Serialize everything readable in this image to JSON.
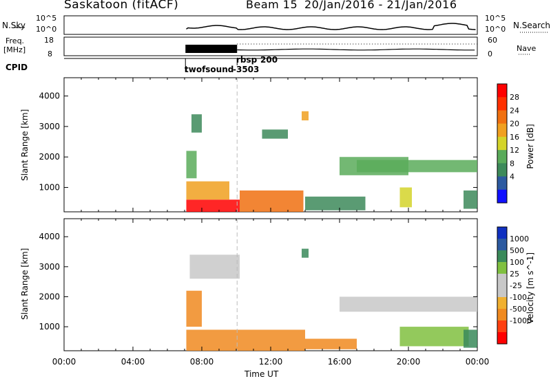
{
  "header": {
    "station": "Saskatoon (fitACF)",
    "beam": "Beam 15",
    "date_range": "20/Jan/2016 - 21/Jan/2016"
  },
  "top_panels": {
    "nsky_label": "N.Sky",
    "nsky_ticks": [
      "10^5",
      "10^0"
    ],
    "nsearch_label": "N.Search",
    "nsearch_ticks": [
      "10^5",
      "10^0"
    ],
    "freq_label": "Freq.",
    "freq_unit": "[MHz]",
    "freq_ticks": [
      "18",
      "8"
    ],
    "nave_label": "Nave",
    "nave_ticks": [
      "60",
      "0"
    ],
    "cpid_label": "CPID",
    "cpid_1": "twofsound",
    "cpid_1_value": "-3503",
    "cpid_2": "rbsp",
    "cpid_2_value": "200"
  },
  "colors": {
    "power": [
      "#1010ff",
      "#2c5aa0",
      "#3d8a5a",
      "#5aab5a",
      "#d4d42a",
      "#f0a020",
      "#f07010",
      "#ff3000",
      "#ff0000"
    ],
    "velocity": [
      "#ff0000",
      "#ff4010",
      "#f08a20",
      "#f0b030",
      "#c8c8c8",
      "#c8c8c8",
      "#80c040",
      "#3a8a5a",
      "#2c5aa0",
      "#1030c0"
    ]
  },
  "chart_data": [
    {
      "type": "heatmap",
      "title": "",
      "xlabel": "Time UT",
      "ylabel": "Slant Range [km]",
      "x_ticks": [
        "00:00",
        "04:00",
        "08:00",
        "12:00",
        "16:00",
        "20:00",
        "00:00"
      ],
      "xlim_hours": [
        0,
        24
      ],
      "ylim": [
        200,
        4600
      ],
      "y_ticks": [
        1000,
        2000,
        3000,
        4000
      ],
      "colorbar_label": "Power [dB]",
      "colorbar_ticks": [
        "28",
        "24",
        "20",
        "16",
        "12",
        "8",
        "4"
      ],
      "colorbar_range": [
        0,
        32
      ],
      "cells": [
        [
          7.1,
          200,
          10.2,
          600,
          30
        ],
        [
          7.1,
          600,
          9.6,
          1200,
          21
        ],
        [
          7.1,
          1300,
          7.7,
          2200,
          14
        ],
        [
          7.4,
          2800,
          8.0,
          3400,
          8
        ],
        [
          10.2,
          200,
          13.9,
          900,
          22
        ],
        [
          11.5,
          2600,
          13.0,
          2900,
          10
        ],
        [
          13.8,
          3200,
          14.2,
          3500,
          18
        ],
        [
          14.0,
          250,
          17.5,
          700,
          8
        ],
        [
          16.0,
          1400,
          20.0,
          2000,
          13
        ],
        [
          17.0,
          1500,
          24.0,
          1900,
          14
        ],
        [
          19.5,
          350,
          20.2,
          1000,
          15
        ],
        [
          23.2,
          300,
          24.0,
          900,
          10
        ]
      ]
    },
    {
      "type": "heatmap",
      "xlabel": "Time UT",
      "ylabel": "Slant Range [km]",
      "x_ticks": [
        "00:00",
        "04:00",
        "08:00",
        "12:00",
        "16:00",
        "20:00",
        "00:00"
      ],
      "xlim_hours": [
        0,
        24
      ],
      "ylim": [
        200,
        4600
      ],
      "y_ticks": [
        1000,
        2000,
        3000,
        4000
      ],
      "colorbar_label": "Velocity [m s^-1]",
      "colorbar_ticks": [
        "1000",
        "500",
        "100",
        "25",
        "-25",
        "-100",
        "-500",
        "-1000"
      ],
      "cells": [
        [
          7.1,
          200,
          10.0,
          900,
          -300
        ],
        [
          7.1,
          1000,
          8.0,
          2200,
          -400
        ],
        [
          7.3,
          2600,
          10.2,
          3400,
          0
        ],
        [
          10.0,
          200,
          14.0,
          900,
          -150
        ],
        [
          13.8,
          3300,
          14.2,
          3600,
          150
        ],
        [
          14.0,
          250,
          17.0,
          600,
          -100
        ],
        [
          16.0,
          1500,
          24.0,
          2000,
          0
        ],
        [
          19.5,
          350,
          23.5,
          1000,
          80
        ],
        [
          23.2,
          300,
          24.0,
          900,
          120
        ]
      ]
    }
  ]
}
